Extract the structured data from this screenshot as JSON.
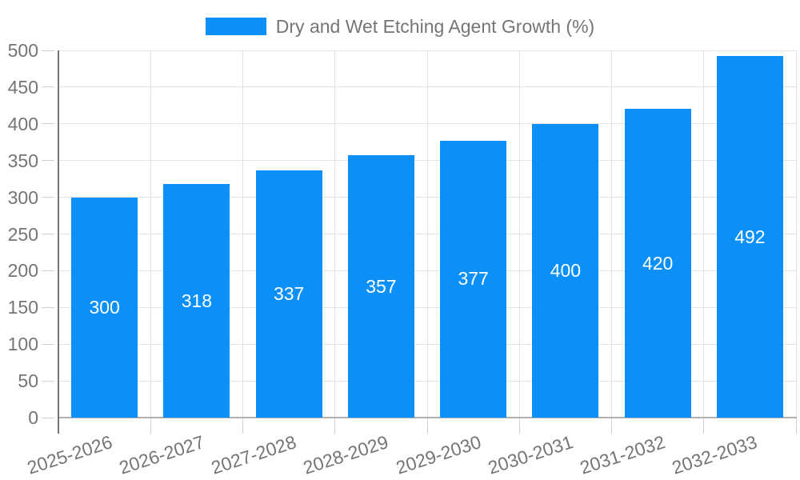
{
  "legend": {
    "label": "Dry and Wet Etching Agent Growth (%)"
  },
  "chart_data": {
    "type": "bar",
    "title": "Dry and Wet Etching Agent Growth (%)",
    "categories": [
      "2025-2026",
      "2026-2027",
      "2027-2028",
      "2028-2029",
      "2029-2030",
      "2030-2031",
      "2031-2032",
      "2032-2033"
    ],
    "values": [
      300,
      318,
      337,
      357,
      377,
      400,
      420,
      492
    ],
    "xlabel": "",
    "ylabel": "",
    "ylim": [
      0,
      500
    ],
    "yticks": [
      0,
      50,
      100,
      150,
      200,
      250,
      300,
      350,
      400,
      450,
      500
    ],
    "grid": true,
    "legend_position": "top-center",
    "bar_color": "#0a90f8",
    "value_label_color": "#ffffff",
    "axis_text_color": "#757575",
    "gridline_color": "#e3e3e3"
  }
}
